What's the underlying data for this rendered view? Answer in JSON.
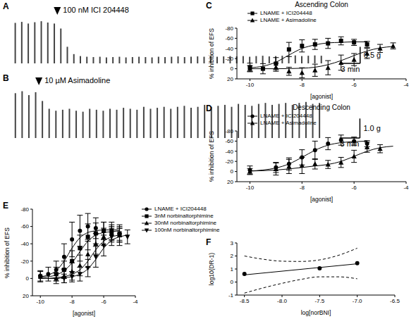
{
  "chart_data": [
    {
      "panel": "A",
      "type": "bar",
      "color": "#444444",
      "tick_labels": false,
      "x": [
        0,
        1,
        2,
        3,
        4,
        5,
        6,
        7,
        8,
        9,
        10,
        11,
        12,
        13,
        14,
        15,
        16,
        17,
        18,
        19,
        20,
        21,
        22,
        23,
        24,
        25,
        26,
        27,
        28,
        29,
        30,
        31,
        32,
        33,
        34,
        35,
        36,
        37,
        38,
        39,
        40,
        41,
        42,
        43,
        44,
        45,
        46,
        47
      ],
      "values": [
        1.22,
        1.25,
        1.2,
        1.24,
        1.27,
        1.23,
        1.2,
        1.05,
        0.5,
        0.28,
        0.22,
        0.2,
        0.19,
        0.2,
        0.18,
        0.19,
        0.2,
        0.18,
        0.19,
        0.2,
        0.19,
        0.18,
        0.2,
        0.19,
        0.2,
        0.21,
        0.19,
        0.2,
        0.21,
        0.2,
        0.22,
        0.2,
        0.21,
        0.22,
        0.21,
        0.22,
        0.2,
        0.22,
        0.23,
        0.21,
        0.22,
        0.23,
        0.22,
        0.24,
        0.22,
        0.23,
        0.24,
        0.23
      ],
      "xlim": [
        -1,
        54
      ],
      "ylim": [
        0,
        1.4
      ],
      "annotations": [
        {
          "x": 6.5,
          "text": "100 nM ICI 204448"
        }
      ],
      "scale_bars": [
        {
          "axis": "y",
          "value": 0.5,
          "label": "0.5 g"
        },
        {
          "axis": "x",
          "value": 3,
          "label": "3 min"
        }
      ]
    },
    {
      "panel": "B",
      "type": "bar",
      "color": "#444444",
      "tick_labels": false,
      "x": [
        0,
        1,
        2,
        3,
        4,
        5,
        6,
        7,
        8,
        9,
        10,
        11,
        12,
        13,
        14,
        15,
        16,
        17,
        18,
        19,
        20,
        21,
        22,
        23,
        24,
        25,
        26,
        27,
        28,
        29,
        30,
        31,
        32,
        33,
        34,
        35,
        36,
        37,
        38,
        39,
        40,
        41,
        42,
        43,
        44,
        45
      ],
      "values": [
        2.3,
        2.4,
        2.2,
        2.35,
        1.9,
        1.5,
        1.4,
        1.45,
        1.5,
        1.4,
        1.35,
        1.5,
        1.45,
        1.4,
        1.5,
        1.45,
        1.55,
        1.5,
        1.45,
        1.6,
        1.5,
        1.55,
        1.6,
        1.5,
        1.6,
        1.65,
        1.55,
        1.6,
        1.7,
        1.6,
        1.65,
        1.7,
        1.6,
        1.75,
        1.7,
        1.65,
        1.75,
        1.8,
        1.7,
        1.75,
        1.8,
        1.7,
        1.8,
        1.85,
        1.75,
        1.8
      ],
      "xlim": [
        -1,
        52
      ],
      "ylim": [
        0,
        2.6
      ],
      "annotations": [
        {
          "x": 3.5,
          "text": "10 µM Asimadoline"
        }
      ],
      "scale_bars": [
        {
          "axis": "y",
          "value": 1,
          "label": "1.0 g"
        },
        {
          "axis": "x",
          "value": 3,
          "label": "3 min"
        }
      ]
    },
    {
      "panel": "C",
      "type": "scatter",
      "title": "Ascending Colon",
      "x_label": "[agonist]",
      "y_label": "% inhibition of EFS",
      "xlim": [
        -10.5,
        -4
      ],
      "xticks": [
        -10,
        -8,
        -6,
        -4
      ],
      "ylim": [
        20,
        -80
      ],
      "yticks": [
        -80,
        -60,
        -40,
        -20,
        0,
        20
      ],
      "legend": "upper left",
      "series": [
        {
          "name": "LNAME + ICI204448",
          "marker": "square",
          "color": "#000000",
          "x": [
            -10,
            -9.5,
            -9,
            -8.5,
            -8,
            -7.5,
            -7,
            -6.5,
            -6,
            -5.5
          ],
          "values": [
            -3,
            0,
            -10,
            -38,
            -45,
            -48,
            -50,
            -55,
            -52,
            -48
          ],
          "errors": [
            8,
            10,
            12,
            14,
            12,
            10,
            10,
            8,
            6,
            6
          ],
          "fit": {
            "x": [
              -10,
              -9.5,
              -9,
              -8.5,
              -8,
              -7.5,
              -7,
              -6.5,
              -6,
              -5.5
            ],
            "values": [
              -2,
              -5,
              -13,
              -27,
              -40,
              -47,
              -51,
              -52,
              -53,
              -53
            ]
          }
        },
        {
          "name": "LNAME + Asimadoline",
          "marker": "triangle",
          "color": "#000000",
          "x": [
            -10,
            -9,
            -8.5,
            -8,
            -7.5,
            -7,
            -6.5,
            -6,
            -5.5,
            -5,
            -4.5
          ],
          "values": [
            0,
            -3,
            5,
            8,
            3,
            -2,
            -12,
            -18,
            -30,
            -40,
            -45
          ],
          "errors": [
            6,
            8,
            8,
            10,
            12,
            14,
            15,
            12,
            10,
            8,
            6
          ],
          "fit": {
            "x": [
              -10,
              -9,
              -8,
              -7.5,
              -7,
              -6.5,
              -6,
              -5.5,
              -5,
              -4.5
            ],
            "values": [
              0,
              0,
              -1,
              -3,
              -8,
              -16,
              -26,
              -35,
              -41,
              -44
            ]
          }
        }
      ]
    },
    {
      "panel": "D",
      "type": "scatter",
      "title": "Descending Colon",
      "x_label": "[agonist]",
      "y_label": "% inhibition of EFS",
      "xlim": [
        -10.5,
        -4
      ],
      "xticks": [
        -10,
        -8,
        -6,
        -4
      ],
      "ylim": [
        20,
        -80
      ],
      "yticks": [
        -80,
        -60,
        -40,
        -20,
        0,
        20
      ],
      "legend": "upper left",
      "series": [
        {
          "name": "LNAME + ICI204448",
          "marker": "circle",
          "color": "#000000",
          "x": [
            -10,
            -9,
            -8.5,
            -8,
            -7.5,
            -7,
            -6.5,
            -6,
            -5.5
          ],
          "values": [
            -3,
            -8,
            -15,
            -28,
            -42,
            -55,
            -62,
            -60,
            -55
          ],
          "errors": [
            8,
            10,
            12,
            15,
            18,
            12,
            10,
            8,
            6
          ],
          "fit": {
            "x": [
              -10,
              -9.5,
              -9,
              -8.5,
              -8,
              -7.5,
              -7,
              -6.5,
              -6,
              -5.5
            ],
            "values": [
              -1,
              -3,
              -7,
              -15,
              -28,
              -42,
              -52,
              -57,
              -59,
              -60
            ]
          }
        },
        {
          "name": "LNAME + Asimadoline",
          "marker": "triangle",
          "color": "#000000",
          "x": [
            -10,
            -9,
            -8.5,
            -8,
            -7.5,
            -7,
            -6.5,
            -6,
            -5.5,
            -5
          ],
          "values": [
            0,
            -5,
            -10,
            -12,
            -15,
            -14,
            -18,
            -30,
            -48,
            -45
          ],
          "errors": [
            6,
            12,
            14,
            16,
            10,
            8,
            10,
            12,
            10,
            8
          ],
          "fit": {
            "x": [
              -10,
              -9,
              -8,
              -7.5,
              -7,
              -6.5,
              -6,
              -5.5,
              -5,
              -4.5
            ],
            "values": [
              -1,
              -3,
              -8,
              -11,
              -14,
              -20,
              -30,
              -40,
              -47,
              -50
            ]
          }
        }
      ]
    },
    {
      "panel": "E",
      "type": "scatter",
      "x_label": "[agonist]",
      "y_label": "% inhibition of EFS",
      "xlim": [
        -10.5,
        -4
      ],
      "xticks": [
        -10,
        -8,
        -6,
        -4
      ],
      "ylim": [
        20,
        -80
      ],
      "yticks": [
        -80,
        -60,
        -40,
        -20,
        0,
        20
      ],
      "legend": "right",
      "series": [
        {
          "name": "LNAME + ICI204448",
          "marker": "circle",
          "color": "#000000",
          "x": [
            -10,
            -9.5,
            -9,
            -8.5,
            -8,
            -7.5,
            -7,
            -6.5,
            -6,
            -5.5,
            -5
          ],
          "values": [
            -3,
            -5,
            -10,
            -25,
            -45,
            -55,
            -60,
            -58,
            -55,
            -52,
            -50
          ],
          "errors": [
            6,
            8,
            10,
            15,
            20,
            18,
            15,
            12,
            10,
            10,
            12
          ],
          "fit": {
            "x": [
              -10,
              -9.5,
              -9,
              -8.5,
              -8,
              -7.5,
              -7,
              -6.5,
              -6,
              -5.5,
              -5
            ],
            "values": [
              -2,
              -4,
              -9,
              -20,
              -35,
              -47,
              -53,
              -55,
              -56,
              -56,
              -56
            ]
          }
        },
        {
          "name": "3nM norbinaltorphimine",
          "marker": "square",
          "color": "#000000",
          "x": [
            -10,
            -9,
            -8.5,
            -8,
            -7.5,
            -7,
            -6.5,
            -6,
            -5.5,
            -5
          ],
          "values": [
            -2,
            -5,
            -10,
            -20,
            -35,
            -48,
            -52,
            -55,
            -55,
            -52
          ],
          "errors": [
            6,
            8,
            10,
            12,
            15,
            15,
            12,
            10,
            10,
            8
          ],
          "fit": {
            "x": [
              -10,
              -9.5,
              -9,
              -8.5,
              -8,
              -7.5,
              -7,
              -6.5,
              -6,
              -5.5,
              -5
            ],
            "values": [
              -1,
              -2,
              -4,
              -9,
              -18,
              -31,
              -43,
              -50,
              -53,
              -54,
              -55
            ]
          }
        },
        {
          "name": "30nM norbinaltorphimine",
          "marker": "triangle",
          "color": "#000000",
          "x": [
            -9,
            -8.5,
            -8,
            -7.5,
            -7,
            -6.5,
            -6,
            -5.5,
            -5
          ],
          "values": [
            0,
            -3,
            -8,
            -15,
            -28,
            -40,
            -48,
            -52,
            -50
          ],
          "errors": [
            6,
            8,
            10,
            12,
            15,
            12,
            10,
            8,
            8
          ],
          "fit": {
            "x": [
              -10,
              -9.5,
              -9,
              -8.5,
              -8,
              -7.5,
              -7,
              -6.5,
              -6,
              -5.5,
              -5
            ],
            "values": [
              0,
              0,
              -1,
              -2,
              -5,
              -10,
              -20,
              -33,
              -43,
              -48,
              -50
            ]
          }
        },
        {
          "name": "100nM norbinaltorphimine",
          "marker": "triangle-down",
          "color": "#000000",
          "x": [
            -8.5,
            -8,
            -7.5,
            -7,
            -6.5,
            -6,
            -5.5,
            -5,
            -4.5
          ],
          "values": [
            0,
            -2,
            -5,
            -12,
            -25,
            -38,
            -48,
            -50,
            -48
          ],
          "errors": [
            5,
            6,
            8,
            10,
            12,
            12,
            10,
            8,
            8
          ],
          "fit": {
            "x": [
              -10,
              -9.5,
              -9,
              -8.5,
              -8,
              -7.5,
              -7,
              -6.5,
              -6,
              -5.5,
              -5,
              -4.5
            ],
            "values": [
              0,
              0,
              0,
              -1,
              -2,
              -5,
              -11,
              -22,
              -35,
              -44,
              -48,
              -50
            ]
          }
        }
      ]
    },
    {
      "panel": "F",
      "type": "scatter",
      "x_label": "log[norBNI]",
      "y_label": "log10(DR-1)",
      "xlim": [
        -8.6,
        -6.5
      ],
      "xticks": [
        -8.5,
        {
          "value": -8,
          "label": "-8.0"
        },
        -7.5,
        {
          "value": -7,
          "label": "-7.0"
        },
        -6.5
      ],
      "ylim": [
        -1,
        3
      ],
      "yticks": [
        -1,
        0,
        1,
        2,
        3
      ],
      "series": [
        {
          "type": "scatter",
          "marker": "circle",
          "color": "#000000",
          "x": [
            -8.5,
            -7.5,
            -7
          ],
          "values": [
            0.62,
            1.05,
            1.45
          ]
        },
        {
          "type": "line",
          "line_style": "solid",
          "color": "#000000",
          "x": [
            -8.5,
            -7
          ],
          "values": [
            0.55,
            1.4
          ]
        },
        {
          "type": "line",
          "line_style": "dashed",
          "color": "#000000",
          "x": [
            -8.5,
            -8.25,
            -8,
            -7.75,
            -7.5,
            -7.25,
            -7
          ],
          "values": [
            2.0,
            1.75,
            1.6,
            1.58,
            1.7,
            2.05,
            2.6
          ]
        },
        {
          "type": "line",
          "line_style": "dashed",
          "color": "#000000",
          "x": [
            -8.5,
            -8.25,
            -8,
            -7.75,
            -7.5,
            -7.25,
            -7
          ],
          "values": [
            -0.85,
            -0.45,
            -0.1,
            0.2,
            0.4,
            0.4,
            0.25
          ]
        }
      ]
    }
  ]
}
